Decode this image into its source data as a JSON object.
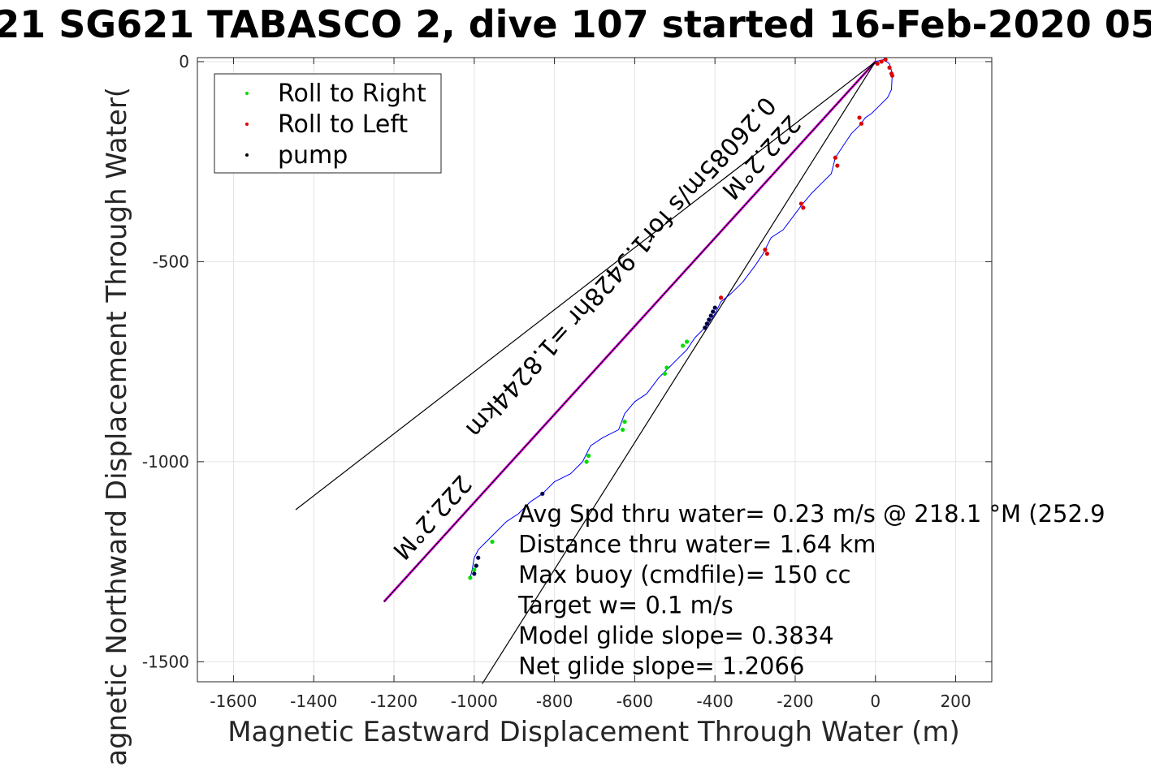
{
  "chart_data": {
    "type": "line",
    "title": "21 SG621 TABASCO 2, dive 107 started 16-Feb-2020 05",
    "xlabel": "Magnetic Eastward Displacement Through Water (m)",
    "ylabel": "Magnetic Northward Displacement Through Water(",
    "xlim": [
      -1690,
      290
    ],
    "ylim": [
      -1550,
      10
    ],
    "xticks": [
      -1600,
      -1400,
      -1200,
      -1000,
      -800,
      -600,
      -400,
      -200,
      0,
      200
    ],
    "yticks": [
      0,
      -500,
      -1000,
      -1500
    ],
    "grid": true,
    "legend": {
      "location": "top-left",
      "entries": [
        {
          "label": "Roll to Right",
          "color": "#00dd00"
        },
        {
          "label": "Roll to Left",
          "color": "#dd0000"
        },
        {
          "label": "pump",
          "color": "#000000"
        }
      ]
    },
    "track": {
      "color": "#0000ff",
      "x": [
        0,
        20,
        35,
        42,
        40,
        30,
        10,
        -10,
        -25,
        -40,
        -60,
        -80,
        -100,
        -110,
        -130,
        -160,
        -185,
        -200,
        -230,
        -260,
        -280,
        -300,
        -330,
        -360,
        -385,
        -400,
        -420,
        -450,
        -470,
        -490,
        -520,
        -540,
        -570,
        -600,
        -625,
        -640,
        -680,
        -710,
        -730,
        -760,
        -800,
        -830,
        -860,
        -890,
        -920,
        -950,
        -970,
        -990,
        -1000,
        -1005,
        -1010
      ],
      "y": [
        0,
        5,
        -5,
        -30,
        -70,
        -90,
        -110,
        -130,
        -140,
        -160,
        -180,
        -210,
        -240,
        -280,
        -300,
        -330,
        -360,
        -380,
        -420,
        -440,
        -480,
        -510,
        -550,
        -580,
        -600,
        -630,
        -660,
        -690,
        -720,
        -740,
        -770,
        -790,
        -830,
        -850,
        -880,
        -920,
        -940,
        -960,
        -1000,
        -1030,
        -1050,
        -1080,
        -1100,
        -1130,
        -1150,
        -1180,
        -1200,
        -1220,
        -1240,
        -1270,
        -1290
      ]
    },
    "roll_right": {
      "x": [
        -1010,
        -1000,
        -995,
        -955,
        -720,
        -715,
        -630,
        -625,
        -525,
        -520,
        -480,
        -470
      ],
      "y": [
        -1290,
        -1270,
        -1260,
        -1200,
        -1000,
        -985,
        -920,
        -900,
        -780,
        -765,
        -710,
        -700
      ]
    },
    "roll_left": {
      "x": [
        40,
        35,
        25,
        15,
        5,
        42,
        -40,
        -35,
        -100,
        -95,
        -185,
        -180,
        -275,
        -270,
        -385
      ],
      "y": [
        -30,
        -15,
        5,
        0,
        -5,
        -35,
        -140,
        -155,
        -240,
        -260,
        -355,
        -365,
        -470,
        -480,
        -590
      ]
    },
    "pump": {
      "x": [
        -1000,
        -995,
        -990,
        -830,
        -425,
        -420,
        -415,
        -410,
        -405,
        -400
      ],
      "y": [
        -1280,
        -1260,
        -1240,
        -1080,
        -665,
        -655,
        -645,
        -635,
        -625,
        -615
      ]
    },
    "lines": [
      {
        "name": "heading-line",
        "color": "#ff00ff",
        "x": [
          0,
          -1225
        ],
        "y": [
          0,
          -1350
        ]
      },
      {
        "name": "bound-line-upper",
        "color": "#000000",
        "x": [
          0,
          -1445
        ],
        "y": [
          0,
          -1120
        ]
      },
      {
        "name": "bound-line-center",
        "color": "#000000",
        "x": [
          0,
          -1225
        ],
        "y": [
          0,
          -1350
        ]
      },
      {
        "name": "bound-line-lower",
        "color": "#000000",
        "x": [
          0,
          -980
        ],
        "y": [
          0,
          -1555
        ]
      }
    ],
    "line_labels": [
      {
        "text": "222.2°M",
        "x": -1120,
        "y": -1125,
        "angle": 132
      },
      {
        "text": "0.26085m/s for1.9428hr =1.8244km",
        "x": -650,
        "y": -500,
        "angle": 132
      },
      {
        "text": "222.2°M",
        "x": -300,
        "y": -225,
        "angle": 132
      }
    ],
    "annotations": [
      "Avg Spd thru water=  0.23 m/s @ 218.1 °M (252.9",
      "Distance thru water=  1.64 km",
      "Max buoy (cmdfile)= 150 cc",
      "Target w= 0.1 m/s",
      "Model glide slope= 0.3834",
      "Net glide slope= 1.2066"
    ],
    "annotation_origin": {
      "x": -890,
      "y": -1150
    }
  }
}
